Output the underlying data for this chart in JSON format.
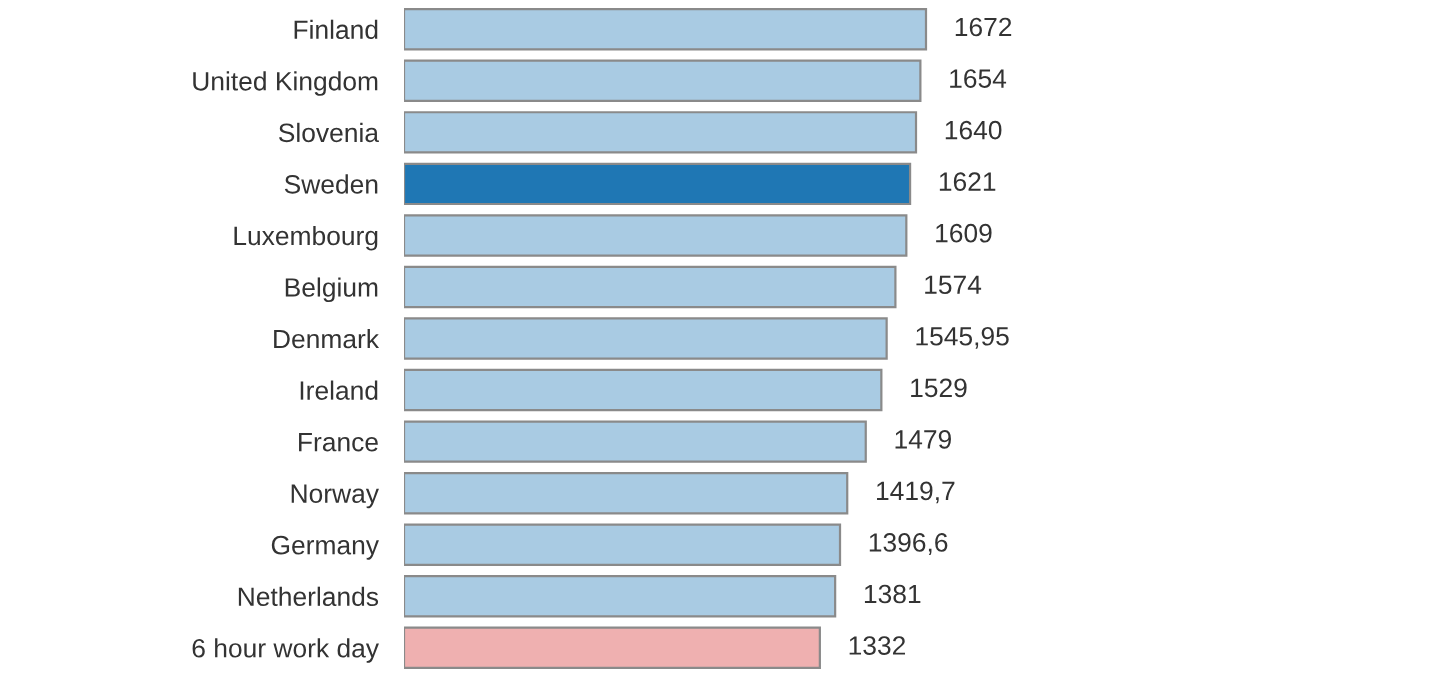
{
  "chart_data": {
    "type": "bar",
    "orientation": "horizontal",
    "categories": [
      "Finland",
      "United Kingdom",
      "Slovenia",
      "Sweden",
      "Luxembourg",
      "Belgium",
      "Denmark",
      "Ireland",
      "France",
      "Norway",
      "Germany",
      "Netherlands",
      "6 hour work day"
    ],
    "values": [
      1672,
      1654,
      1640,
      1621,
      1609,
      1574,
      1545.95,
      1529,
      1479,
      1419.7,
      1396.6,
      1381,
      1332
    ],
    "value_labels": [
      "1672",
      "1654",
      "1640",
      "1621",
      "1609",
      "1574",
      "1545,95",
      "1529",
      "1479",
      "1419,7",
      "1396,6",
      "1381",
      "1332"
    ],
    "colors": [
      "#a9cbe3",
      "#a9cbe3",
      "#a9cbe3",
      "#1f77b4",
      "#a9cbe3",
      "#a9cbe3",
      "#a9cbe3",
      "#a9cbe3",
      "#a9cbe3",
      "#a9cbe3",
      "#a9cbe3",
      "#a9cbe3",
      "#efb0b0"
    ],
    "grid": false
  }
}
